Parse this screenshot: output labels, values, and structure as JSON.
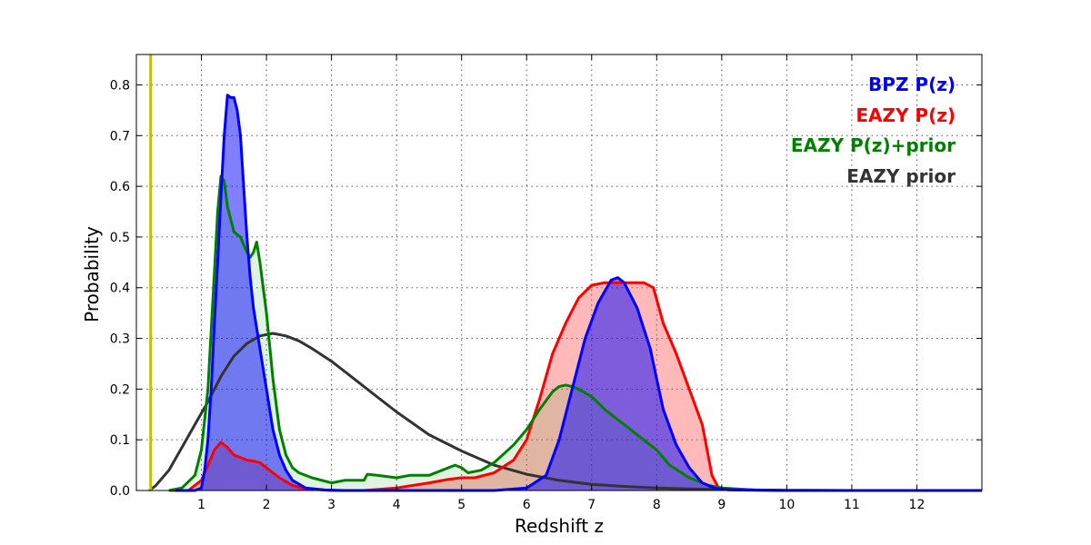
{
  "chart_data": {
    "type": "area",
    "title": "",
    "xlabel": "Redshift z",
    "ylabel": "Probability",
    "xlim": [
      0,
      13
    ],
    "ylim": [
      0,
      0.86
    ],
    "xticks": [
      1,
      2,
      3,
      4,
      5,
      6,
      7,
      8,
      9,
      10,
      11,
      12
    ],
    "yticks": [
      0.0,
      0.1,
      0.2,
      0.3,
      0.4,
      0.5,
      0.6,
      0.7,
      0.8
    ],
    "grid": true,
    "legend_position": "top-right",
    "vline": {
      "x": 0.22,
      "color": "#bfbf00"
    },
    "series": [
      {
        "name": "EAZY prior",
        "color": "#333333",
        "fill": null,
        "x": [
          0.2,
          0.3,
          0.5,
          0.7,
          0.9,
          1.1,
          1.3,
          1.5,
          1.7,
          1.9,
          2.1,
          2.3,
          2.5,
          2.7,
          3.0,
          3.3,
          3.6,
          4.0,
          4.5,
          5.0,
          5.5,
          6.0,
          6.5,
          7.0,
          7.5,
          8.0,
          8.5,
          9.0,
          9.5,
          10,
          11,
          12,
          13
        ],
        "y": [
          0.0,
          0.01,
          0.04,
          0.085,
          0.13,
          0.175,
          0.225,
          0.265,
          0.29,
          0.305,
          0.31,
          0.305,
          0.295,
          0.28,
          0.255,
          0.225,
          0.195,
          0.155,
          0.11,
          0.078,
          0.05,
          0.032,
          0.02,
          0.012,
          0.008,
          0.005,
          0.003,
          0.002,
          0.001,
          0.0005,
          0.0,
          0.0,
          0.0
        ]
      },
      {
        "name": "EAZY P(z)",
        "color": "#ff0000",
        "fill": "rgba(255,70,70,0.38)",
        "x": [
          0.5,
          0.8,
          1.0,
          1.1,
          1.2,
          1.3,
          1.4,
          1.5,
          1.6,
          1.7,
          1.8,
          1.9,
          2.0,
          2.2,
          2.4,
          2.6,
          3.0,
          3.5,
          4.0,
          4.5,
          4.8,
          5.0,
          5.2,
          5.5,
          5.8,
          6.0,
          6.2,
          6.4,
          6.6,
          6.8,
          7.0,
          7.2,
          7.4,
          7.6,
          7.8,
          7.95,
          8.1,
          8.3,
          8.5,
          8.7,
          8.85,
          8.95,
          9.1,
          10,
          11,
          12,
          13
        ],
        "y": [
          0.0,
          0.0,
          0.02,
          0.05,
          0.08,
          0.095,
          0.085,
          0.07,
          0.065,
          0.06,
          0.058,
          0.055,
          0.045,
          0.025,
          0.01,
          0.003,
          0.0,
          0.0,
          0.005,
          0.015,
          0.022,
          0.025,
          0.025,
          0.035,
          0.06,
          0.1,
          0.18,
          0.27,
          0.33,
          0.38,
          0.405,
          0.41,
          0.41,
          0.41,
          0.41,
          0.4,
          0.33,
          0.27,
          0.2,
          0.13,
          0.03,
          0.005,
          0.001,
          0.0,
          0.0,
          0.0,
          0.0
        ]
      },
      {
        "name": "EAZY P(z)+prior",
        "color": "#008000",
        "fill": "rgba(0,160,0,0.12)",
        "x": [
          0.5,
          0.7,
          0.9,
          1.0,
          1.1,
          1.2,
          1.25,
          1.3,
          1.35,
          1.4,
          1.5,
          1.6,
          1.7,
          1.75,
          1.8,
          1.85,
          1.9,
          2.0,
          2.1,
          2.2,
          2.3,
          2.4,
          2.5,
          2.7,
          3.0,
          3.2,
          3.5,
          3.55,
          3.7,
          4.0,
          4.2,
          4.5,
          4.8,
          4.9,
          5.0,
          5.1,
          5.3,
          5.5,
          5.8,
          6.0,
          6.2,
          6.4,
          6.5,
          6.6,
          6.7,
          6.8,
          7.0,
          7.2,
          7.4,
          7.6,
          7.8,
          8.0,
          8.2,
          8.5,
          8.8,
          9.0,
          9.5,
          10,
          11,
          12,
          13
        ],
        "y": [
          0.0,
          0.005,
          0.03,
          0.08,
          0.2,
          0.43,
          0.55,
          0.62,
          0.61,
          0.56,
          0.51,
          0.5,
          0.47,
          0.46,
          0.47,
          0.49,
          0.45,
          0.35,
          0.22,
          0.12,
          0.07,
          0.045,
          0.035,
          0.025,
          0.015,
          0.02,
          0.02,
          0.032,
          0.03,
          0.025,
          0.03,
          0.03,
          0.045,
          0.05,
          0.045,
          0.035,
          0.04,
          0.055,
          0.09,
          0.12,
          0.16,
          0.195,
          0.205,
          0.208,
          0.205,
          0.2,
          0.185,
          0.16,
          0.14,
          0.12,
          0.1,
          0.08,
          0.05,
          0.025,
          0.01,
          0.005,
          0.001,
          0.0,
          0.0,
          0.0,
          0.0
        ]
      },
      {
        "name": "BPZ P(z)",
        "color": "#0000ff",
        "fill": "rgba(0,0,255,0.50)",
        "x": [
          0.6,
          0.9,
          1.0,
          1.05,
          1.1,
          1.15,
          1.2,
          1.25,
          1.3,
          1.35,
          1.4,
          1.45,
          1.5,
          1.55,
          1.6,
          1.65,
          1.7,
          1.75,
          1.8,
          1.9,
          2.0,
          2.1,
          2.2,
          2.3,
          2.4,
          2.6,
          2.9,
          3.2,
          5.5,
          6.0,
          6.3,
          6.5,
          6.7,
          6.9,
          7.1,
          7.3,
          7.4,
          7.5,
          7.7,
          7.9,
          8.0,
          8.1,
          8.3,
          8.5,
          8.7,
          8.9,
          9.2,
          10,
          13
        ],
        "y": [
          0.0,
          0.0,
          0.005,
          0.04,
          0.1,
          0.2,
          0.33,
          0.45,
          0.58,
          0.7,
          0.78,
          0.775,
          0.775,
          0.75,
          0.7,
          0.6,
          0.5,
          0.42,
          0.36,
          0.28,
          0.2,
          0.12,
          0.07,
          0.04,
          0.02,
          0.005,
          0.001,
          0.0,
          0.0,
          0.005,
          0.03,
          0.1,
          0.2,
          0.3,
          0.37,
          0.415,
          0.42,
          0.41,
          0.36,
          0.28,
          0.22,
          0.16,
          0.09,
          0.045,
          0.015,
          0.004,
          0.001,
          0.0,
          0.0
        ]
      }
    ]
  }
}
